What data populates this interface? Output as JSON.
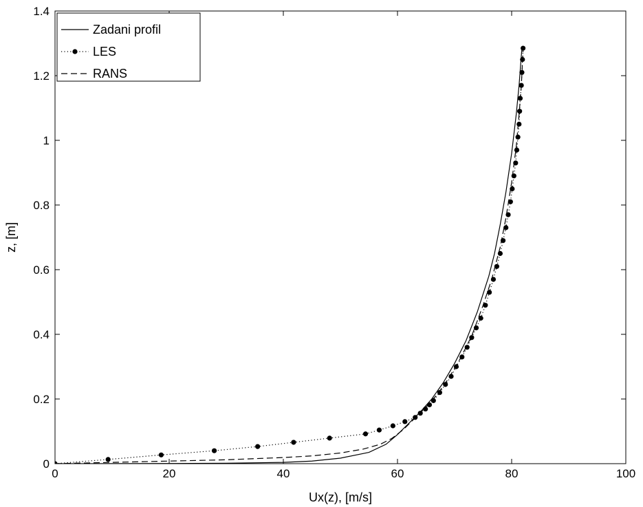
{
  "chart_data": {
    "type": "line",
    "title": "",
    "xlabel": "Ux(z), [m/s]",
    "ylabel": "z, [m]",
    "xlim": [
      0,
      100
    ],
    "ylim": [
      0,
      1.4
    ],
    "xticks": [
      0,
      20,
      40,
      60,
      80,
      100
    ],
    "yticks": [
      0,
      0.2,
      0.4,
      0.6,
      0.8,
      1,
      1.2,
      1.4
    ],
    "xtick_labels": [
      "0",
      "20",
      "40",
      "60",
      "80",
      "100"
    ],
    "ytick_labels": [
      "0",
      "0.2",
      "0.4",
      "0.6",
      "0.8",
      "1",
      "1.2",
      "1.4"
    ],
    "grid": false,
    "legend_position": "top-left",
    "series": [
      {
        "name": "Zadani profil",
        "style": "solid",
        "color": "#000000",
        "points": [
          [
            0,
            0.0
          ],
          [
            20,
            0.0005
          ],
          [
            30,
            0.0015
          ],
          [
            40,
            0.004
          ],
          [
            45,
            0.008
          ],
          [
            50,
            0.017
          ],
          [
            55,
            0.035
          ],
          [
            58,
            0.06
          ],
          [
            60,
            0.09
          ],
          [
            62,
            0.125
          ],
          [
            64,
            0.16
          ],
          [
            66,
            0.2
          ],
          [
            68,
            0.25
          ],
          [
            70,
            0.31
          ],
          [
            72,
            0.38
          ],
          [
            74,
            0.47
          ],
          [
            76,
            0.58
          ],
          [
            77,
            0.65
          ],
          [
            78,
            0.74
          ],
          [
            79,
            0.84
          ],
          [
            80,
            0.96
          ],
          [
            80.8,
            1.08
          ],
          [
            81.3,
            1.17
          ],
          [
            81.6,
            1.24
          ],
          [
            81.8,
            1.285
          ]
        ]
      },
      {
        "name": "LES",
        "style": "dotted-markers",
        "color": "#000000",
        "points": [
          [
            0,
            0.0
          ],
          [
            9.3,
            0.013
          ],
          [
            18.6,
            0.027
          ],
          [
            27.9,
            0.04
          ],
          [
            35.5,
            0.053
          ],
          [
            41.8,
            0.066
          ],
          [
            48.1,
            0.079
          ],
          [
            54.4,
            0.092
          ],
          [
            56.8,
            0.104
          ],
          [
            59.2,
            0.117
          ],
          [
            61.3,
            0.13
          ],
          [
            63.1,
            0.143
          ],
          [
            64.0,
            0.156
          ],
          [
            64.9,
            0.169
          ],
          [
            65.6,
            0.182
          ],
          [
            66.3,
            0.195
          ],
          [
            67.4,
            0.22
          ],
          [
            68.4,
            0.245
          ],
          [
            69.4,
            0.27
          ],
          [
            70.3,
            0.3
          ],
          [
            71.3,
            0.33
          ],
          [
            72.2,
            0.36
          ],
          [
            73.0,
            0.39
          ],
          [
            73.8,
            0.42
          ],
          [
            74.6,
            0.45
          ],
          [
            75.4,
            0.49
          ],
          [
            76.1,
            0.53
          ],
          [
            76.8,
            0.57
          ],
          [
            77.4,
            0.61
          ],
          [
            78.0,
            0.65
          ],
          [
            78.5,
            0.69
          ],
          [
            79.0,
            0.73
          ],
          [
            79.4,
            0.77
          ],
          [
            79.8,
            0.81
          ],
          [
            80.1,
            0.85
          ],
          [
            80.4,
            0.89
          ],
          [
            80.7,
            0.93
          ],
          [
            80.9,
            0.97
          ],
          [
            81.1,
            1.01
          ],
          [
            81.3,
            1.05
          ],
          [
            81.4,
            1.09
          ],
          [
            81.5,
            1.13
          ],
          [
            81.7,
            1.17
          ],
          [
            81.8,
            1.21
          ],
          [
            81.9,
            1.25
          ],
          [
            82.0,
            1.285
          ]
        ]
      },
      {
        "name": "RANS",
        "style": "dashed",
        "color": "#000000",
        "points": [
          [
            0,
            0.0
          ],
          [
            10,
            0.004
          ],
          [
            20,
            0.008
          ],
          [
            30,
            0.012
          ],
          [
            40,
            0.019
          ],
          [
            45,
            0.024
          ],
          [
            50,
            0.033
          ],
          [
            54,
            0.045
          ],
          [
            57,
            0.06
          ],
          [
            59,
            0.078
          ],
          [
            61,
            0.105
          ],
          [
            63,
            0.14
          ],
          [
            65,
            0.175
          ],
          [
            67,
            0.215
          ],
          [
            69,
            0.265
          ],
          [
            71,
            0.325
          ],
          [
            73,
            0.395
          ],
          [
            75,
            0.49
          ],
          [
            76.5,
            0.57
          ],
          [
            78,
            0.67
          ],
          [
            79,
            0.76
          ],
          [
            80,
            0.87
          ],
          [
            80.8,
            0.98
          ],
          [
            81.3,
            1.08
          ],
          [
            81.7,
            1.17
          ],
          [
            82,
            1.28
          ]
        ]
      }
    ]
  }
}
